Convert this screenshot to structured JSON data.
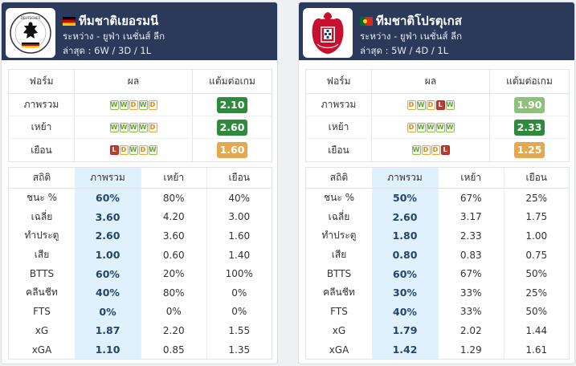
{
  "colors": {
    "header_bg": "#2b3a5a",
    "ppg_dark_green": "#2e8b3e",
    "ppg_light_green": "#8ec07c",
    "ppg_orange": "#e4a94f",
    "highlight_column": "#def1fc"
  },
  "left": {
    "team_name": "ทีมชาติเยอรมนี",
    "flag": "germany-flag-icon",
    "logo": "germany-crest-icon",
    "line1": "ระหว่าง - ยูฟ่า เนชั่นส์ ลีก",
    "line2": "ล่าสุด : 6W / 3D / 1L",
    "form_headers": [
      "ฟอร์ม",
      "ผล",
      "แต้มต่อเกม"
    ],
    "form_rows": [
      {
        "label": "ภาพรวม",
        "results": [
          "W",
          "W",
          "D",
          "W",
          "D"
        ],
        "ppg": "2.10",
        "ppg_color": "#2e8b3e"
      },
      {
        "label": "เหย้า",
        "results": [
          "W",
          "W",
          "W",
          "W",
          "D"
        ],
        "ppg": "2.60",
        "ppg_color": "#2e8b3e"
      },
      {
        "label": "เยือน",
        "results": [
          "L",
          "D",
          "W",
          "D",
          "W"
        ],
        "ppg": "1.60",
        "ppg_color": "#e4a94f"
      }
    ],
    "stats_headers": [
      "สถิติ",
      "ภาพรวม",
      "เหย้า",
      "เยือน"
    ],
    "stats_rows": [
      {
        "label": "ชนะ %",
        "overall": "60%",
        "home": "80%",
        "away": "40%"
      },
      {
        "label": "เฉลี่ย",
        "overall": "3.60",
        "home": "4.20",
        "away": "3.00"
      },
      {
        "label": "ทำประตู",
        "overall": "2.60",
        "home": "3.60",
        "away": "1.60"
      },
      {
        "label": "เสีย",
        "overall": "1.00",
        "home": "0.60",
        "away": "1.40"
      },
      {
        "label": "BTTS",
        "overall": "60%",
        "home": "20%",
        "away": "100%"
      },
      {
        "label": "คลีนชีท",
        "overall": "40%",
        "home": "80%",
        "away": "0%"
      },
      {
        "label": "FTS",
        "overall": "0%",
        "home": "0%",
        "away": "0%"
      },
      {
        "label": "xG",
        "overall": "1.87",
        "home": "2.20",
        "away": "1.55"
      },
      {
        "label": "xGA",
        "overall": "1.10",
        "home": "0.85",
        "away": "1.35"
      }
    ]
  },
  "right": {
    "team_name": "ทีมชาติโปรตุเกส",
    "flag": "portugal-flag-icon",
    "logo": "portugal-crest-icon",
    "line1": "ระหว่าง - ยูฟ่า เนชั่นส์ ลีก",
    "line2": "ล่าสุด : 5W / 4D / 1L",
    "form_headers": [
      "ฟอร์ม",
      "ผล",
      "แต้มต่อเกม"
    ],
    "form_rows": [
      {
        "label": "ภาพรวม",
        "results": [
          "D",
          "W",
          "D",
          "L",
          "W"
        ],
        "ppg": "1.90",
        "ppg_color": "#8ec07c"
      },
      {
        "label": "เหย้า",
        "results": [
          "D",
          "W",
          "W",
          "W",
          "W"
        ],
        "ppg": "2.33",
        "ppg_color": "#2e8b3e"
      },
      {
        "label": "เยือน",
        "results": [
          "W",
          "D",
          "D",
          "L"
        ],
        "ppg": "1.25",
        "ppg_color": "#e4a94f"
      }
    ],
    "stats_headers": [
      "สถิติ",
      "ภาพรวม",
      "เหย้า",
      "เยือน"
    ],
    "stats_rows": [
      {
        "label": "ชนะ %",
        "overall": "50%",
        "home": "67%",
        "away": "25%"
      },
      {
        "label": "เฉลี่ย",
        "overall": "2.60",
        "home": "3.17",
        "away": "1.75"
      },
      {
        "label": "ทำประตู",
        "overall": "1.80",
        "home": "2.33",
        "away": "1.00"
      },
      {
        "label": "เสีย",
        "overall": "0.80",
        "home": "0.83",
        "away": "0.75"
      },
      {
        "label": "BTTS",
        "overall": "60%",
        "home": "67%",
        "away": "50%"
      },
      {
        "label": "คลีนชีท",
        "overall": "30%",
        "home": "33%",
        "away": "25%"
      },
      {
        "label": "FTS",
        "overall": "40%",
        "home": "33%",
        "away": "50%"
      },
      {
        "label": "xG",
        "overall": "1.79",
        "home": "2.02",
        "away": "1.44"
      },
      {
        "label": "xGA",
        "overall": "1.42",
        "home": "1.29",
        "away": "1.61"
      }
    ]
  }
}
